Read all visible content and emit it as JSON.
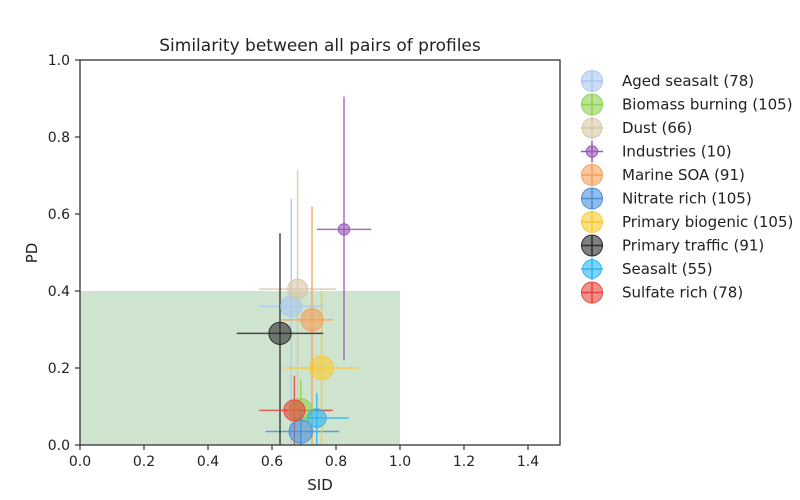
{
  "chart_data": {
    "type": "scatter",
    "title": "Similarity between all pairs of profiles",
    "xlabel": "SID",
    "ylabel": "PD",
    "xlim": [
      0,
      1.5
    ],
    "ylim": [
      0,
      1.0
    ],
    "xticks": [
      0.0,
      0.2,
      0.4,
      0.6,
      0.8,
      1.0,
      1.2,
      1.4
    ],
    "yticks": [
      0.0,
      0.2,
      0.4,
      0.6,
      0.8,
      1.0
    ],
    "xtick_labels": [
      "0.0",
      "0.2",
      "0.4",
      "0.6",
      "0.8",
      "1.0",
      "1.2",
      "1.4"
    ],
    "ytick_labels": [
      "0.0",
      "0.2",
      "0.4",
      "0.6",
      "0.8",
      "1.0"
    ],
    "grid": false,
    "legend_position": "outside-right",
    "shaded_region": {
      "x": [
        0,
        1.0
      ],
      "y": [
        0,
        0.4
      ],
      "color": "#cfe4cf"
    },
    "series": [
      {
        "name": "Aged seasalt (78)",
        "color": "#a9c8f0",
        "x": 0.66,
        "y": 0.36,
        "xerr": [
          0.56,
          0.76
        ],
        "yerr": [
          0.0,
          0.64
        ],
        "size": 78
      },
      {
        "name": "Biomass burning (105)",
        "color": "#8fd14f",
        "x": 0.69,
        "y": 0.09,
        "xerr": [
          0.62,
          0.78
        ],
        "yerr": [
          0.0,
          0.17
        ],
        "size": 105
      },
      {
        "name": "Dust (66)",
        "color": "#d6c6a6",
        "x": 0.68,
        "y": 0.405,
        "xerr": [
          0.56,
          0.8
        ],
        "yerr": [
          0.0,
          0.715
        ],
        "size": 66
      },
      {
        "name": "Industries (10)",
        "color": "#9b59b6",
        "x": 0.825,
        "y": 0.56,
        "xerr": [
          0.74,
          0.91
        ],
        "yerr": [
          0.22,
          0.905
        ],
        "size": 10
      },
      {
        "name": "Marine SOA (91)",
        "color": "#f5a05a",
        "x": 0.725,
        "y": 0.325,
        "xerr": [
          0.63,
          0.79
        ],
        "yerr": [
          0.0,
          0.62
        ],
        "size": 91
      },
      {
        "name": "Nitrate rich (105)",
        "color": "#4a90d9",
        "x": 0.69,
        "y": 0.035,
        "xerr": [
          0.58,
          0.81
        ],
        "yerr": [
          0.0,
          0.09
        ],
        "size": 105
      },
      {
        "name": "Primary biogenic (105)",
        "color": "#f9c930",
        "x": 0.755,
        "y": 0.2,
        "xerr": [
          0.64,
          0.87
        ],
        "yerr": [
          0.0,
          0.4
        ],
        "size": 105
      },
      {
        "name": "Primary traffic (91)",
        "color": "#2b2b2b",
        "x": 0.625,
        "y": 0.29,
        "xerr": [
          0.49,
          0.76
        ],
        "yerr": [
          0.0,
          0.55
        ],
        "size": 91
      },
      {
        "name": "Seasalt (55)",
        "color": "#29b6f6",
        "x": 0.74,
        "y": 0.07,
        "xerr": [
          0.67,
          0.84
        ],
        "yerr": [
          0.0,
          0.135
        ],
        "size": 55
      },
      {
        "name": "Sulfate rich (78)",
        "color": "#e8453c",
        "x": 0.67,
        "y": 0.09,
        "xerr": [
          0.56,
          0.79
        ],
        "yerr": [
          0.0,
          0.18
        ],
        "size": 78
      }
    ]
  }
}
